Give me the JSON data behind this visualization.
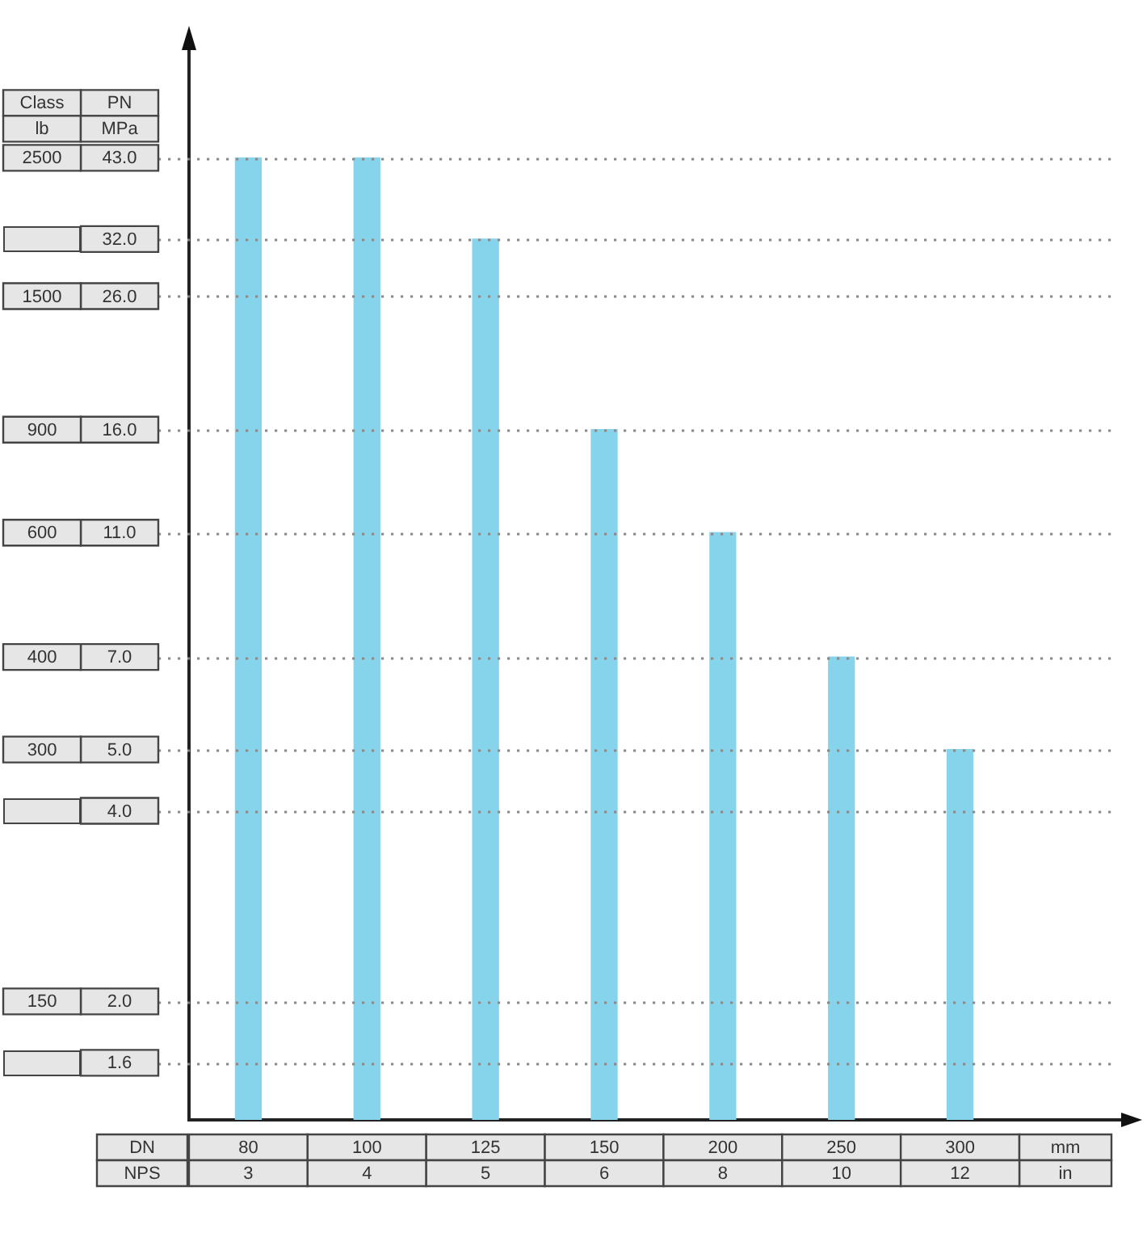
{
  "chart_data": {
    "type": "bar",
    "xlabel": "DN",
    "ylabel": "PN",
    "categories": [
      "80",
      "100",
      "125",
      "150",
      "200",
      "250",
      "300"
    ],
    "values": [
      43,
      43,
      32,
      16,
      11,
      7,
      5
    ],
    "color": "#86d3ec",
    "log": true,
    "ylim": [
      1.3,
      64
    ],
    "yticks": [
      1.6,
      {
        "value": 2,
        "label": "2.0"
      },
      {
        "value": 4,
        "label": "4.0"
      },
      {
        "value": 5,
        "label": "5.0"
      },
      {
        "value": 7,
        "label": "7.0"
      },
      {
        "value": 11,
        "label": "11.0"
      },
      {
        "value": 16,
        "label": "16.0"
      },
      {
        "value": 26,
        "label": "26.0"
      },
      {
        "value": 32,
        "label": "32.0"
      },
      {
        "value": 43,
        "label": "43.0"
      }
    ],
    "ref_lines": [
      {
        "axis": "y",
        "value": 43,
        "color": "#8a8a8a",
        "line_style": "dotted"
      },
      {
        "axis": "y",
        "value": 32,
        "color": "#8a8a8a",
        "line_style": "dotted"
      },
      {
        "axis": "y",
        "value": 26,
        "color": "#8a8a8a",
        "line_style": "dotted"
      },
      {
        "axis": "y",
        "value": 16,
        "color": "#8a8a8a",
        "line_style": "dotted"
      },
      {
        "axis": "y",
        "value": 11,
        "color": "#8a8a8a",
        "line_style": "dotted"
      },
      {
        "axis": "y",
        "value": 7,
        "color": "#8a8a8a",
        "line_style": "dotted"
      },
      {
        "axis": "y",
        "value": 5,
        "color": "#8a8a8a",
        "line_style": "dotted"
      },
      {
        "axis": "y",
        "value": 4,
        "color": "#8a8a8a",
        "line_style": "dotted"
      },
      {
        "axis": "y",
        "value": 2,
        "color": "#8a8a8a",
        "line_style": "dotted"
      },
      {
        "axis": "y",
        "value": 1.6,
        "color": "#8a8a8a",
        "line_style": "dotted"
      }
    ],
    "annotations": [
      "Class",
      "lb",
      "MPa",
      "mm",
      "NPS",
      "in",
      "3",
      "4",
      "5",
      "6",
      "8",
      "10",
      "12",
      {
        "text": "2500",
        "y": 43
      },
      {
        "text": "1500",
        "y": 26
      },
      {
        "text": "900",
        "y": 16
      },
      {
        "text": "600",
        "y": 11
      },
      {
        "text": "400",
        "y": 7
      },
      {
        "text": "300",
        "y": 5
      },
      {
        "text": "150",
        "y": 2
      }
    ]
  }
}
